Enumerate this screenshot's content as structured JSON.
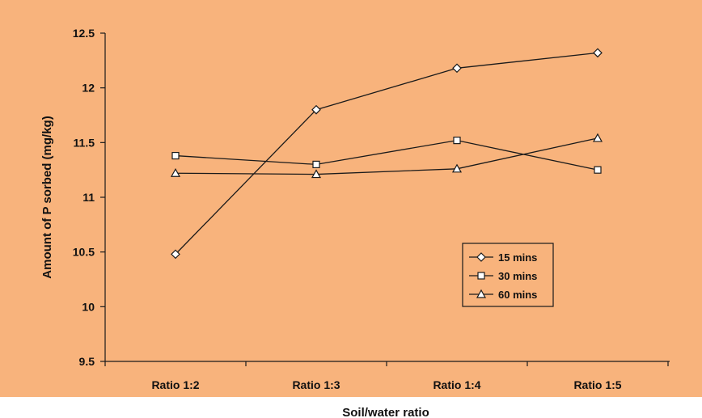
{
  "colors": {
    "plot_background": "#f8b37c",
    "page_background": "#ffffff",
    "line": "#1a1a1a",
    "marker_fill": "#ffffff"
  },
  "chart_data": {
    "type": "line",
    "title": "",
    "xlabel": "Soil/water ratio",
    "ylabel": "Amount of P sorbed (mg/kg)",
    "categories": [
      "Ratio 1:2",
      "Ratio 1:3",
      "Ratio 1:4",
      "Ratio 1:5"
    ],
    "ylim": [
      9.5,
      12.5
    ],
    "yticks": [
      9.5,
      10,
      10.5,
      11,
      11.5,
      12,
      12.5
    ],
    "ytick_labels": [
      "9.5",
      "10",
      "10.5",
      "11",
      "11.5",
      "12",
      "12.5"
    ],
    "grid": false,
    "legend_position": "lower-right",
    "series": [
      {
        "name": "15 mins",
        "marker": "diamond",
        "values": [
          10.48,
          11.8,
          12.18,
          12.32
        ]
      },
      {
        "name": "30 mins",
        "marker": "square",
        "values": [
          11.38,
          11.3,
          11.52,
          11.25
        ]
      },
      {
        "name": "60 mins",
        "marker": "triangle",
        "values": [
          11.22,
          11.21,
          11.26,
          11.54
        ]
      }
    ]
  }
}
